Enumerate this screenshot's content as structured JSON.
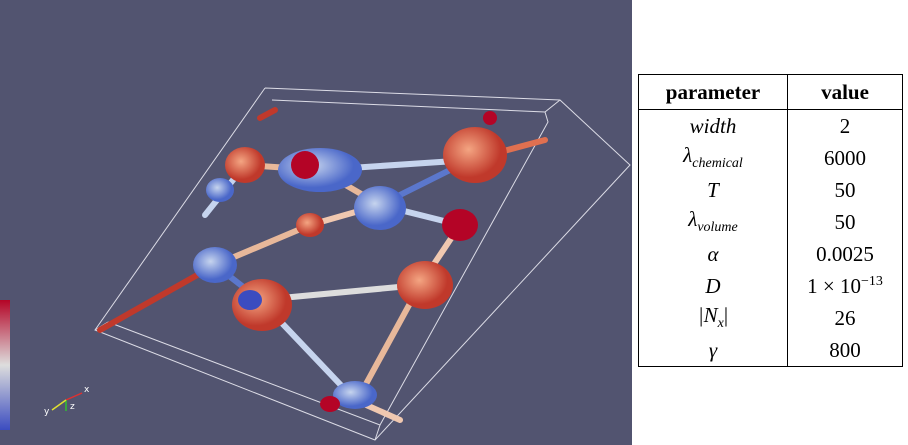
{
  "figure": {
    "axis_labels": [
      "x",
      "y",
      "z"
    ]
  },
  "table": {
    "header": [
      "parameter",
      "value"
    ],
    "rows": [
      {
        "parameter": "width",
        "value": "2"
      },
      {
        "parameter": {
          "base": "λ",
          "sub": "chemical"
        },
        "value": "6000"
      },
      {
        "parameter": "T",
        "value": "50"
      },
      {
        "parameter": {
          "base": "λ",
          "sub": "volume"
        },
        "value": "50"
      },
      {
        "parameter": "α",
        "value": "0.0025"
      },
      {
        "parameter": "D",
        "value": {
          "base": "1 × 10",
          "sup": "−13"
        }
      },
      {
        "parameter": {
          "base": "|N",
          "sub": "x",
          "tail": "|"
        },
        "value": "26"
      },
      {
        "parameter": "γ",
        "value": "800"
      }
    ]
  }
}
